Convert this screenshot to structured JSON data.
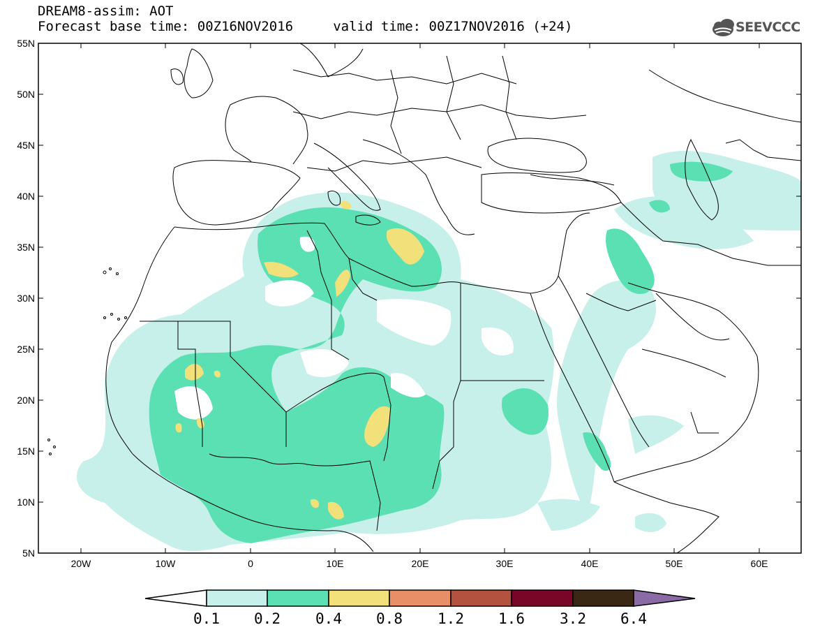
{
  "header": {
    "line1": "DREAM8-assim: AOT",
    "line2": "Forecast base time: 00Z16NOV2016     valid time: 00Z17NOV2016 (+24)",
    "logo_text": "SEEVCCC"
  },
  "axes": {
    "y_ticks": [
      "55N",
      "50N",
      "45N",
      "40N",
      "35N",
      "30N",
      "25N",
      "20N",
      "15N",
      "10N",
      "5N"
    ],
    "x_ticks": [
      "20W",
      "10W",
      "0",
      "10E",
      "20E",
      "30E",
      "40E",
      "50E",
      "60E"
    ]
  },
  "colorbar": {
    "labels": [
      "0.1",
      "0.2",
      "0.4",
      "0.8",
      "1.2",
      "1.6",
      "3.2",
      "6.4"
    ],
    "colors": [
      "#ffffff",
      "#c8f0ea",
      "#5be0b4",
      "#f2e07a",
      "#e98f68",
      "#b3533f",
      "#7a0627",
      "#3b2814",
      "#8a6ba6"
    ]
  },
  "map": {
    "variable": "AOT",
    "lon_range": [
      -25,
      65
    ],
    "lat_range": [
      5,
      55
    ],
    "plume_colors": {
      "light": "#c8f0ea",
      "mid": "#5be0b4",
      "high": "#f2e07a"
    }
  }
}
